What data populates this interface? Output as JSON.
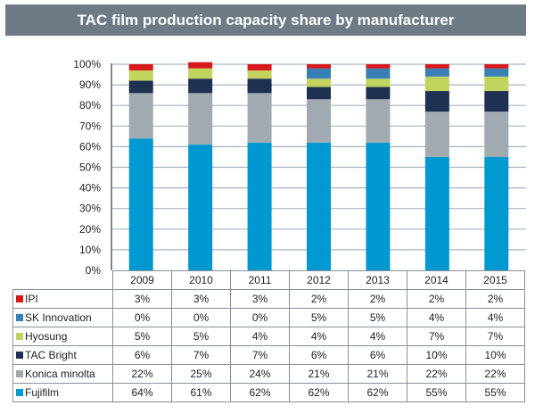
{
  "chart_data": {
    "type": "bar",
    "stacked": true,
    "title": "TAC film production capacity share by manufacturer",
    "xlabel": "",
    "ylabel": "",
    "ylim": [
      0,
      100
    ],
    "yticks": [
      "0%",
      "10%",
      "20%",
      "30%",
      "40%",
      "50%",
      "60%",
      "70%",
      "80%",
      "90%",
      "100%"
    ],
    "grid": true,
    "legend": "table-below",
    "categories": [
      "2009",
      "2010",
      "2011",
      "2012",
      "2013",
      "2014",
      "2015"
    ],
    "series": [
      {
        "name": "Fujifilm",
        "color": "#0098d0",
        "values": [
          64,
          61,
          62,
          62,
          62,
          55,
          55
        ]
      },
      {
        "name": "Konica minolta",
        "color": "#a2aab1",
        "values": [
          22,
          25,
          24,
          21,
          21,
          22,
          22
        ]
      },
      {
        "name": "TAC Bright",
        "color": "#1f3150",
        "values": [
          6,
          7,
          7,
          6,
          6,
          10,
          10
        ]
      },
      {
        "name": "Hyosung",
        "color": "#c2d35e",
        "values": [
          5,
          5,
          4,
          4,
          4,
          7,
          7
        ]
      },
      {
        "name": "SK Innovation",
        "color": "#3a7fb4",
        "values": [
          0,
          0,
          0,
          5,
          5,
          4,
          4
        ]
      },
      {
        "name": "IPI",
        "color": "#d7191c",
        "values": [
          3,
          3,
          3,
          2,
          2,
          2,
          2
        ]
      }
    ],
    "table_rows_order": [
      "IPI",
      "SK Innovation",
      "Hyosung",
      "TAC Bright",
      "Konica minolta",
      "Fujifilm"
    ],
    "value_suffix": "%"
  },
  "colors": {
    "title_bar": "#6f7a87",
    "grid": "#a9b4c0"
  }
}
